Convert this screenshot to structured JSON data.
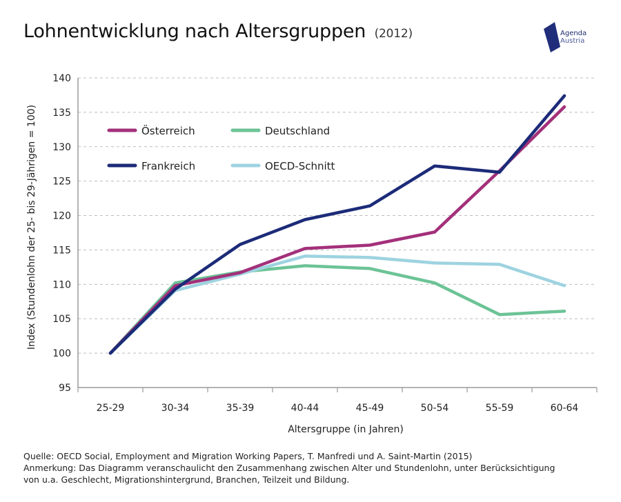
{
  "header": {
    "title": "Lohnentwicklung nach Altersgruppen",
    "year": "(2012)"
  },
  "logo": {
    "line1": "Agenda",
    "line2": "Austria",
    "color": "#1f2d7a"
  },
  "footer": {
    "source": "Quelle: OECD Social, Employment and Migration Working Papers, T. Manfredi und A. Saint-Martin (2015)",
    "note1": "Anmerkung: Das Diagramm veranschaulicht den Zusammenhang zwischen Alter und Stundenlohn, unter Berücksichtigung",
    "note2": "von u.a. Geschlecht, Migrationshintergrund, Branchen, Teilzeit und Bildung."
  },
  "chart_data": {
    "type": "line",
    "title": "Lohnentwicklung nach Altersgruppen (2012)",
    "xlabel": "Altersgruppe (in Jahren)",
    "ylabel": "Index (Stundenlohn der 25- bis 29-Jährigen = 100)",
    "categories": [
      "25-29",
      "30-34",
      "35-39",
      "40-44",
      "45-49",
      "50-54",
      "55-59",
      "60-64"
    ],
    "ylim": [
      95,
      140
    ],
    "yticks": [
      95,
      100,
      105,
      110,
      115,
      120,
      125,
      130,
      135,
      140
    ],
    "grid": "horizontal dashed",
    "legend_position": "top-left",
    "series": [
      {
        "name": "Österreich",
        "color": "#a3307a",
        "values": [
          100,
          109.8,
          111.7,
          115.2,
          115.7,
          117.6,
          126.5,
          135.8
        ]
      },
      {
        "name": "Deutschland",
        "color": "#6cc396",
        "values": [
          100,
          110.2,
          111.8,
          112.7,
          112.3,
          110.2,
          105.6,
          106.1
        ]
      },
      {
        "name": "Frankreich",
        "color": "#1c2b78",
        "values": [
          100,
          109.3,
          115.8,
          119.4,
          121.4,
          127.2,
          126.3,
          137.4
        ]
      },
      {
        "name": "OECD-Schnitt",
        "color": "#9ed3e0",
        "values": [
          100,
          109.1,
          111.5,
          114.1,
          113.9,
          113.1,
          112.9,
          109.8
        ]
      }
    ]
  }
}
